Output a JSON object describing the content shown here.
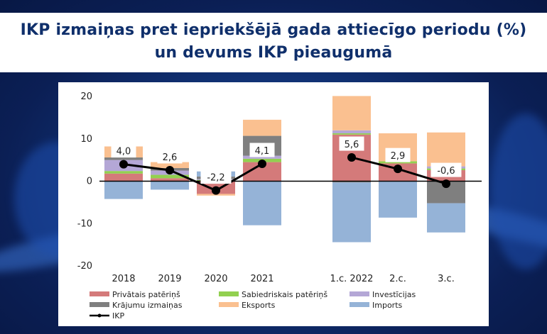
{
  "header": {
    "title_line1": "IKP izmaiņas pret iepriekšējā gada attiecīgo periodu (%)",
    "title_line2": "un devums IKP pieaugumā"
  },
  "chart_data": {
    "type": "bar",
    "stacked": true,
    "categories": [
      "2018",
      "2019",
      "2020",
      "2021",
      "1.c. 2022",
      "2.c.",
      "3.c."
    ],
    "ylim": [
      -20,
      20
    ],
    "yticks": [
      -20,
      -10,
      0,
      10,
      20
    ],
    "series": [
      {
        "name": "Privātais patēriņš",
        "color": "#d47a7a",
        "values": [
          1.8,
          0.7,
          -3.0,
          4.5,
          11.0,
          4.2,
          2.6
        ]
      },
      {
        "name": "Sabiedriskais patēriņš",
        "color": "#92d050",
        "values": [
          0.6,
          0.8,
          0.3,
          0.8,
          0.3,
          0.5,
          0.4
        ]
      },
      {
        "name": "Investīcijas",
        "color": "#b4a7d6",
        "values": [
          2.6,
          1.0,
          0.2,
          0.7,
          0.7,
          0.0,
          0.5
        ]
      },
      {
        "name": "Krājumu izmaiņas",
        "color": "#7f7f7f",
        "values": [
          0.6,
          0.6,
          0.6,
          4.7,
          -0.3,
          0.0,
          -5.2
        ]
      },
      {
        "name": "Eksports",
        "color": "#fac090",
        "values": [
          2.6,
          1.4,
          -0.4,
          3.8,
          8.1,
          6.6,
          8.0
        ]
      },
      {
        "name": "Imports",
        "color": "#95b3d7",
        "values": [
          -4.2,
          -2.0,
          1.2,
          -10.4,
          -14.1,
          -8.6,
          -6.9
        ]
      }
    ],
    "line": {
      "name": "IKP",
      "color": "#000000",
      "values": [
        4.0,
        2.6,
        -2.2,
        4.1,
        5.6,
        2.9,
        -0.6
      ]
    },
    "data_labels": [
      "4,0",
      "2,6",
      "-2,2",
      "4,1",
      "5,6",
      "2,9",
      "-0,6"
    ],
    "legend_position": "bottom"
  }
}
